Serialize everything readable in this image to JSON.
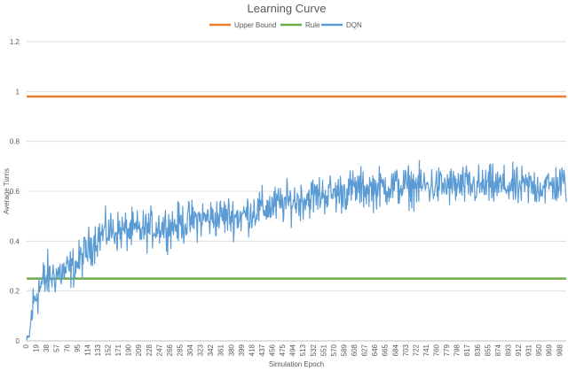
{
  "chart_data": {
    "type": "line",
    "title": "Learning Curve",
    "xlabel": "Simulation Epoch",
    "ylabel": "Average Turns",
    "ylim": [
      0,
      1.2
    ],
    "yticks": [
      "0",
      "0.2",
      "0.4",
      "0.6",
      "0.8",
      "1",
      "1.2"
    ],
    "xlim": [
      0,
      999
    ],
    "xtick_start": 0,
    "xtick_step": 19,
    "grid": "horizontal",
    "legend": "top",
    "series": [
      {
        "name": "Upper Bound",
        "color": "#ED7D31",
        "style": "constant",
        "value": 0.98
      },
      {
        "name": "Rule",
        "color": "#70AD47",
        "style": "constant",
        "value": 0.25
      },
      {
        "name": "DQN",
        "color": "#5B9BD5",
        "style": "noisy",
        "x": [
          0,
          5,
          10,
          19,
          38,
          57,
          76,
          95,
          114,
          133,
          152,
          171,
          190,
          209,
          228,
          247,
          266,
          285,
          304,
          323,
          342,
          361,
          380,
          399,
          418,
          437,
          456,
          475,
          494,
          513,
          532,
          551,
          570,
          589,
          608,
          627,
          646,
          665,
          684,
          703,
          722,
          741,
          760,
          779,
          798,
          817,
          836,
          855,
          874,
          893,
          912,
          931,
          950,
          969,
          988,
          999
        ],
        "y": [
          0.0,
          0.02,
          0.12,
          0.2,
          0.25,
          0.27,
          0.28,
          0.31,
          0.37,
          0.42,
          0.44,
          0.44,
          0.44,
          0.44,
          0.45,
          0.46,
          0.46,
          0.47,
          0.48,
          0.49,
          0.49,
          0.5,
          0.5,
          0.5,
          0.52,
          0.53,
          0.54,
          0.55,
          0.56,
          0.57,
          0.58,
          0.59,
          0.59,
          0.6,
          0.61,
          0.61,
          0.61,
          0.62,
          0.62,
          0.62,
          0.62,
          0.62,
          0.62,
          0.62,
          0.62,
          0.62,
          0.62,
          0.62,
          0.62,
          0.62,
          0.61,
          0.62,
          0.62,
          0.62,
          0.63,
          0.63
        ],
        "noise": 0.04
      }
    ]
  }
}
